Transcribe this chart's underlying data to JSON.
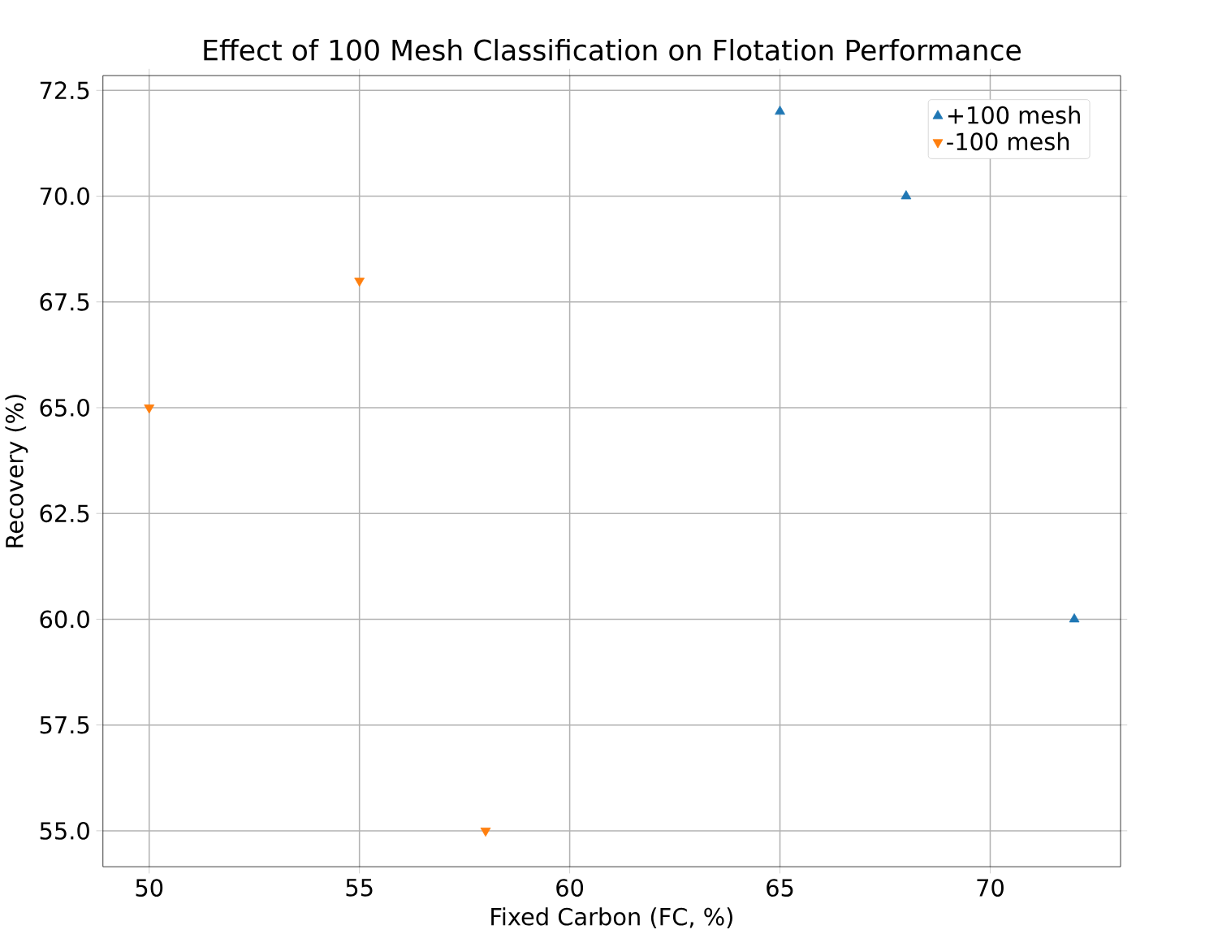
{
  "chart_data": {
    "type": "scatter",
    "title": "Effect of 100 Mesh Classification on Flotation Performance",
    "xlabel": "Fixed Carbon (FC, %)",
    "ylabel": "Recovery (%)",
    "series": [
      {
        "name": "+100 mesh",
        "color": "#1f77b4",
        "marker": "triangle",
        "x": [
          65,
          68,
          72
        ],
        "values": [
          72,
          70,
          60
        ]
      },
      {
        "name": "-100 mesh",
        "color": "#ff7f0e",
        "marker": "triangle down",
        "x": [
          50,
          55,
          58
        ],
        "values": [
          65,
          68,
          55
        ]
      }
    ],
    "xlim": [
      48.9,
      73.1
    ],
    "ylim": [
      54.15,
      72.85
    ],
    "xticks": [
      50,
      55,
      60,
      65,
      70
    ],
    "yticks": [
      {
        "value": 55,
        "label": "55.0"
      },
      {
        "value": 57.5,
        "label": "57.5"
      },
      {
        "value": 60,
        "label": "60.0"
      },
      {
        "value": 62.5,
        "label": "62.5"
      },
      {
        "value": 65,
        "label": "65.0"
      },
      {
        "value": 67.5,
        "label": "67.5"
      },
      {
        "value": 70,
        "label": "70.0"
      },
      {
        "value": 72.5,
        "label": "72.5"
      }
    ],
    "grid": true,
    "legend": "top right"
  }
}
